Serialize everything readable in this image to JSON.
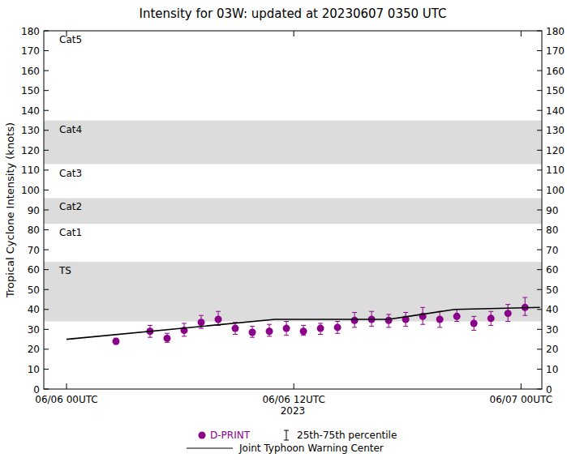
{
  "chart_data": {
    "type": "scatter",
    "title": "Intensity for 03W: updated at 20230607 0350 UTC",
    "y_label": "Tropical Cyclone Intensity (knots)",
    "x_label": "2023",
    "xlim": [
      -1.2,
      25.1
    ],
    "xticks": [
      {
        "value": 0,
        "label": "06/06 00UTC"
      },
      {
        "value": 12,
        "label": "06/06 12UTC"
      },
      {
        "value": 24,
        "label": "06/07 00UTC"
      }
    ],
    "ylim": [
      0,
      180
    ],
    "yticks": [
      0,
      10,
      20,
      30,
      40,
      50,
      60,
      70,
      80,
      90,
      100,
      110,
      120,
      130,
      140,
      150,
      160,
      170,
      180
    ],
    "grid": false,
    "bands": [
      {
        "label": "TS",
        "from": 34,
        "to": 64,
        "color": "#dcdcdc"
      },
      {
        "label": "Cat1",
        "from": 64,
        "to": 83,
        "color": "#ffffff"
      },
      {
        "label": "Cat2",
        "from": 83,
        "to": 96,
        "color": "#dcdcdc"
      },
      {
        "label": "Cat3",
        "from": 96,
        "to": 113,
        "color": "#ffffff"
      },
      {
        "label": "Cat4",
        "from": 113,
        "to": 135,
        "color": "#dcdcdc"
      },
      {
        "label": "Cat5",
        "from": 135,
        "to": 180,
        "color": "#ffffff"
      }
    ],
    "series": [
      {
        "name": "D-PRINT",
        "type": "scatter",
        "marker": "circle",
        "color": "#8b008b",
        "error_label": "25th-75th percentile",
        "x": [
          2.61,
          4.41,
          5.31,
          6.21,
          7.11,
          8.01,
          8.91,
          9.81,
          10.71,
          11.61,
          12.51,
          13.41,
          14.31,
          15.21,
          16.11,
          17.01,
          17.91,
          18.81,
          19.71,
          20.61,
          21.51,
          22.41,
          23.31,
          24.21
        ],
        "values": [
          24,
          29,
          25.5,
          29.5,
          33.5,
          35,
          30.5,
          28.5,
          29,
          30.5,
          29,
          30.5,
          31,
          34.5,
          35,
          34.5,
          35,
          36.5,
          35,
          36.5,
          33,
          35.5,
          38,
          41
        ],
        "q25": [
          22.5,
          26,
          23.5,
          26.5,
          30.5,
          32,
          27.5,
          26,
          26.5,
          27,
          27,
          27.5,
          28,
          31,
          31.5,
          31,
          31.5,
          32.5,
          31,
          34,
          29.5,
          32,
          34,
          37
        ],
        "q75": [
          25.5,
          32,
          28,
          33,
          37,
          39,
          33.5,
          31.5,
          32.5,
          34,
          32,
          33,
          34,
          38.5,
          39,
          37.5,
          38.5,
          41,
          39,
          40,
          36.5,
          39,
          42.5,
          46
        ]
      },
      {
        "name": "Joint Typhoon Warning Center",
        "type": "line",
        "line_style": "solid",
        "color": "#000000",
        "x": [
          0,
          11,
          17,
          20.5,
          25
        ],
        "values": [
          25,
          35,
          35,
          40,
          41
        ]
      }
    ]
  }
}
